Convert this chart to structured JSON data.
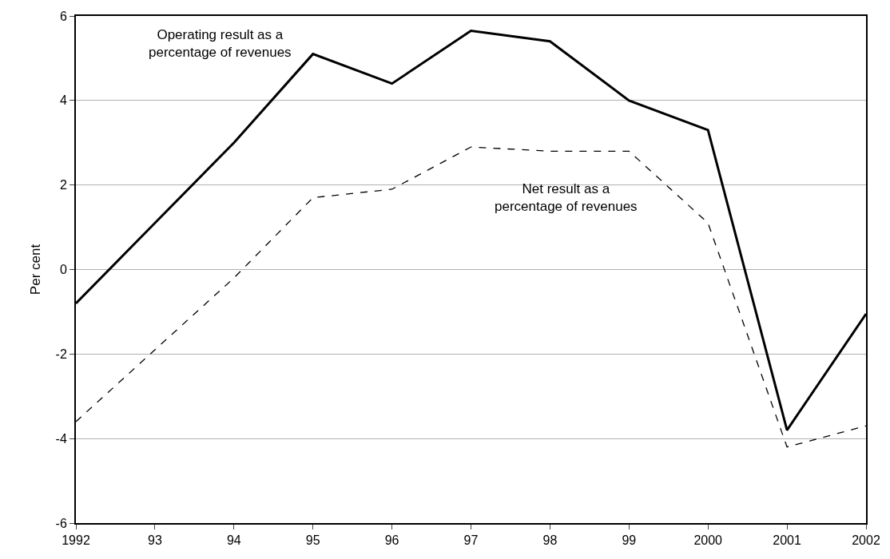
{
  "chart_data": {
    "type": "line",
    "ylabel": "Per cent",
    "categories": [
      "1992",
      "93",
      "94",
      "95",
      "96",
      "97",
      "98",
      "99",
      "2000",
      "2001",
      "2002"
    ],
    "series": [
      {
        "name": "Operating result as a\npercentage of revenues",
        "color": "#000000",
        "line_style": "solid",
        "values": [
          -0.8,
          1.1,
          3.0,
          5.1,
          4.4,
          5.65,
          5.4,
          4.0,
          3.3,
          -3.8,
          -1.05
        ]
      },
      {
        "name": "Net result as a\npercentage of revenues",
        "color": "#000000",
        "line_style": "dashed",
        "values": [
          -3.6,
          -1.9,
          -0.2,
          1.7,
          1.9,
          2.9,
          2.8,
          2.8,
          1.1,
          -4.2,
          -3.7
        ]
      }
    ],
    "ylim": [
      -6,
      6
    ],
    "yticks": [
      -6,
      -4,
      -2,
      0,
      2,
      4,
      6
    ],
    "grid": "y",
    "legend": false,
    "marker": "none"
  }
}
